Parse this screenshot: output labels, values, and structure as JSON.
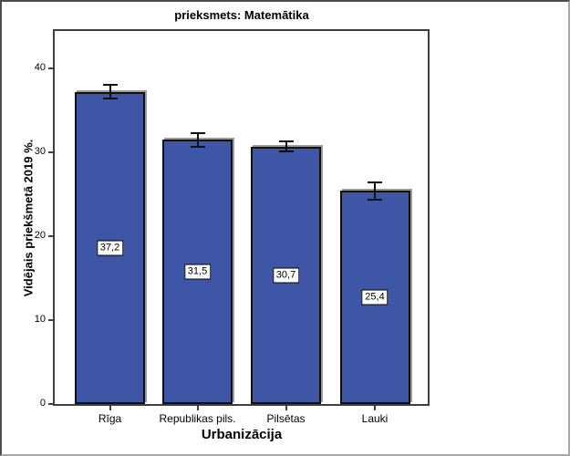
{
  "chart_data": {
    "type": "bar",
    "title": "prieksmets: Matemātika",
    "xlabel": "Urbanizācija",
    "ylabel": "Vidējais priekšmetā 2019 %.",
    "categories": [
      "Rīga",
      "Republikas pils.",
      "Pilsētas",
      "Lauki"
    ],
    "values": [
      37.2,
      31.5,
      30.7,
      25.4
    ],
    "value_labels": [
      "37,2",
      "31,5",
      "30,7",
      "25,4"
    ],
    "errors": [
      0.8,
      0.8,
      0.6,
      1.0
    ],
    "yticks": [
      0,
      10,
      20,
      30,
      40
    ],
    "ylim": [
      0,
      44.7
    ],
    "grid": false,
    "legend": null,
    "bar_color": "#3D56A6",
    "bar_border_color": "#101010",
    "error_bar_color": "#101010",
    "frame_color": "#3f3f3f"
  }
}
